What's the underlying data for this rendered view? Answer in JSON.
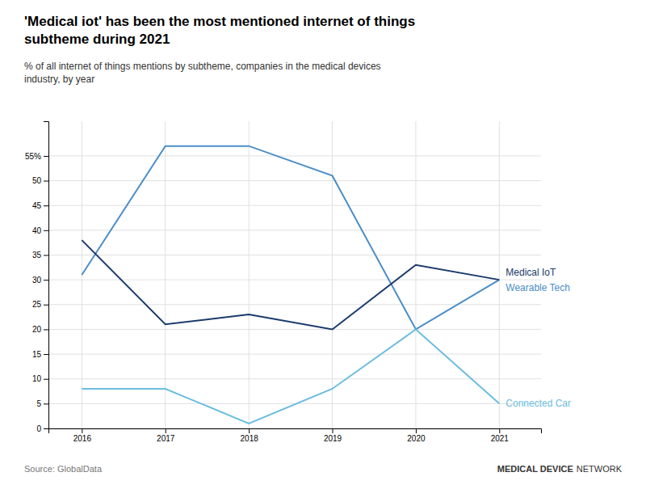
{
  "chart_data": {
    "type": "line",
    "title": "'Medical iot' has been the most mentioned internet of things\nsubtheme during 2021",
    "subtitle": "% of all internet of things mentions by subtheme, companies in the medical devices\nindustry, by year",
    "source": "Source: GlobalData",
    "annotations": [
      "MEDICAL DEVICE",
      "NETWORK"
    ],
    "x": [
      2016,
      2017,
      2018,
      2019,
      2020,
      2021
    ],
    "series": [
      {
        "name": "Wearable Tech",
        "color": "#4b8ec8",
        "values": [
          31,
          57,
          57,
          51,
          20,
          30
        ]
      },
      {
        "name": "Medical IoT",
        "color": "#1a3a6b",
        "values": [
          38,
          21,
          23,
          20,
          33,
          30
        ]
      },
      {
        "name": "Connected Car",
        "color": "#6bbde0",
        "values": [
          8,
          8,
          1,
          8,
          20,
          5
        ]
      }
    ],
    "xlim": [
      2015.6,
      2021.5
    ],
    "xticks": [
      2016,
      2017,
      2018,
      2019,
      2020,
      2021
    ],
    "ylim": [
      0,
      62
    ],
    "yticks": [
      0,
      5,
      10,
      15,
      20,
      25,
      30,
      35,
      40,
      45,
      50,
      {
        "value": 55,
        "label": "55%"
      }
    ],
    "grid": true
  }
}
